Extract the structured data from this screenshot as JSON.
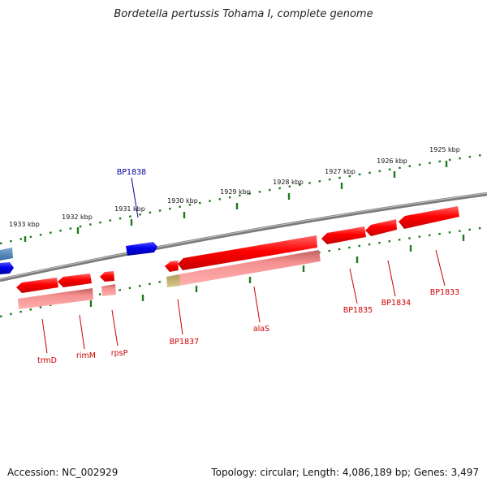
{
  "title": "Bordetella pertussis Tohama I, complete genome",
  "footer": {
    "accession": "Accession: NC_002929",
    "summary": "Topology: circular; Length: 4,086,189 bp; Genes: 3,497"
  },
  "colors": {
    "backbone": "#808080",
    "tick": "#1f7a1f",
    "gene_forward_label": "#000099",
    "gene_reverse_label": "#cc0000",
    "gene_red": "#ff1a1a",
    "gene_pink": "#f08080",
    "gene_blue": "#1010e0"
  },
  "scale_labels": [
    "1925 kbp",
    "1926 kbp",
    "1927 kbp",
    "1928 kbp",
    "1929 kbp",
    "1930 kbp",
    "1931 kbp",
    "1932 kbp",
    "1933 kbp"
  ],
  "gene_labels": [
    "BP1838",
    "BP1833",
    "BP1834",
    "BP1835",
    "alaS",
    "BP1837",
    "rpsP",
    "rimM",
    "trmD"
  ]
}
